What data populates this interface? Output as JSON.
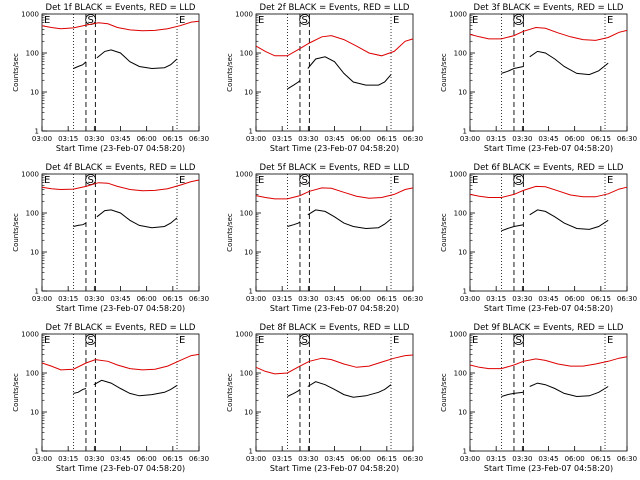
{
  "chart_data": {
    "type": "line",
    "y_scale": "log",
    "ylim": [
      1,
      1000
    ],
    "y_ticks": [
      "1",
      "10",
      "100",
      "1000"
    ],
    "ylabel": "Counts/sec",
    "xlabel": "Start Time (23-Feb-07 04:58:20)",
    "x_ticks": [
      "03:00",
      "03:15",
      "03:30",
      "03:45",
      "06:00",
      "06:15",
      "06:30"
    ],
    "markers": {
      "start": "S",
      "eclipse": "E"
    },
    "colors": {
      "events": "#000000",
      "lld": "#dd0000"
    },
    "panels": [
      {
        "title": "Det 1f BLACK = Events, RED = LLD",
        "lld": [
          [
            0,
            500
          ],
          [
            0.06,
            450
          ],
          [
            0.12,
            420
          ],
          [
            0.2,
            440
          ],
          [
            0.28,
            520
          ],
          [
            0.36,
            600
          ],
          [
            0.42,
            560
          ],
          [
            0.48,
            450
          ],
          [
            0.56,
            390
          ],
          [
            0.64,
            370
          ],
          [
            0.72,
            380
          ],
          [
            0.8,
            420
          ],
          [
            0.88,
            500
          ],
          [
            0.95,
            620
          ],
          [
            1,
            650
          ]
        ],
        "events_a": [
          [
            0.2,
            40
          ],
          [
            0.23,
            45
          ],
          [
            0.26,
            50
          ],
          [
            0.28,
            60
          ]
        ],
        "events_b": [
          [
            0.35,
            75
          ],
          [
            0.4,
            110
          ],
          [
            0.44,
            120
          ],
          [
            0.5,
            100
          ],
          [
            0.56,
            60
          ],
          [
            0.62,
            45
          ],
          [
            0.7,
            40
          ],
          [
            0.78,
            42
          ],
          [
            0.82,
            50
          ],
          [
            0.86,
            70
          ]
        ]
      },
      {
        "title": "Det 2f BLACK = Events, RED = LLD",
        "lld": [
          [
            0,
            150
          ],
          [
            0.06,
            110
          ],
          [
            0.12,
            85
          ],
          [
            0.2,
            85
          ],
          [
            0.28,
            130
          ],
          [
            0.34,
            180
          ],
          [
            0.42,
            260
          ],
          [
            0.48,
            280
          ],
          [
            0.56,
            220
          ],
          [
            0.64,
            150
          ],
          [
            0.72,
            100
          ],
          [
            0.8,
            85
          ],
          [
            0.88,
            110
          ],
          [
            0.95,
            200
          ],
          [
            1,
            230
          ]
        ],
        "events_a": [
          [
            0.2,
            12
          ],
          [
            0.24,
            15
          ],
          [
            0.27,
            18
          ],
          [
            0.28,
            20
          ]
        ],
        "events_b": [
          [
            0.33,
            40
          ],
          [
            0.38,
            70
          ],
          [
            0.44,
            80
          ],
          [
            0.5,
            60
          ],
          [
            0.56,
            30
          ],
          [
            0.62,
            18
          ],
          [
            0.7,
            15
          ],
          [
            0.78,
            15
          ],
          [
            0.82,
            18
          ],
          [
            0.86,
            28
          ]
        ]
      },
      {
        "title": "Det 3f BLACK = Events, RED = LLD",
        "lld": [
          [
            0,
            300
          ],
          [
            0.06,
            260
          ],
          [
            0.12,
            230
          ],
          [
            0.2,
            230
          ],
          [
            0.28,
            280
          ],
          [
            0.34,
            360
          ],
          [
            0.42,
            450
          ],
          [
            0.48,
            430
          ],
          [
            0.56,
            330
          ],
          [
            0.64,
            260
          ],
          [
            0.72,
            220
          ],
          [
            0.8,
            210
          ],
          [
            0.88,
            250
          ],
          [
            0.95,
            340
          ],
          [
            1,
            380
          ]
        ],
        "events_a": [
          [
            0.2,
            30
          ],
          [
            0.24,
            34
          ],
          [
            0.28,
            40
          ],
          [
            0.34,
            45
          ]
        ],
        "events_b": [
          [
            0.38,
            80
          ],
          [
            0.43,
            110
          ],
          [
            0.48,
            100
          ],
          [
            0.54,
            70
          ],
          [
            0.6,
            45
          ],
          [
            0.68,
            30
          ],
          [
            0.76,
            28
          ],
          [
            0.82,
            35
          ],
          [
            0.88,
            55
          ]
        ]
      },
      {
        "title": "Det 4f BLACK = Events, RED = LLD",
        "lld": [
          [
            0,
            460
          ],
          [
            0.06,
            420
          ],
          [
            0.12,
            400
          ],
          [
            0.2,
            410
          ],
          [
            0.28,
            480
          ],
          [
            0.36,
            600
          ],
          [
            0.42,
            580
          ],
          [
            0.48,
            480
          ],
          [
            0.56,
            400
          ],
          [
            0.64,
            370
          ],
          [
            0.72,
            380
          ],
          [
            0.8,
            420
          ],
          [
            0.88,
            520
          ],
          [
            0.95,
            640
          ],
          [
            1,
            700
          ]
        ],
        "events_a": [
          [
            0.2,
            45
          ],
          [
            0.23,
            48
          ],
          [
            0.26,
            50
          ],
          [
            0.28,
            55
          ]
        ],
        "events_b": [
          [
            0.35,
            80
          ],
          [
            0.4,
            115
          ],
          [
            0.44,
            120
          ],
          [
            0.5,
            100
          ],
          [
            0.56,
            65
          ],
          [
            0.62,
            48
          ],
          [
            0.7,
            42
          ],
          [
            0.78,
            45
          ],
          [
            0.82,
            55
          ],
          [
            0.86,
            75
          ]
        ]
      },
      {
        "title": "Det 5f BLACK = Events, RED = LLD",
        "lld": [
          [
            0,
            280
          ],
          [
            0.06,
            250
          ],
          [
            0.12,
            230
          ],
          [
            0.2,
            230
          ],
          [
            0.28,
            280
          ],
          [
            0.34,
            360
          ],
          [
            0.42,
            440
          ],
          [
            0.48,
            430
          ],
          [
            0.56,
            340
          ],
          [
            0.64,
            270
          ],
          [
            0.72,
            240
          ],
          [
            0.8,
            250
          ],
          [
            0.88,
            300
          ],
          [
            0.95,
            400
          ],
          [
            1,
            440
          ]
        ],
        "events_a": [
          [
            0.2,
            45
          ],
          [
            0.24,
            50
          ],
          [
            0.27,
            55
          ],
          [
            0.28,
            60
          ]
        ],
        "events_b": [
          [
            0.33,
            90
          ],
          [
            0.38,
            120
          ],
          [
            0.44,
            110
          ],
          [
            0.5,
            80
          ],
          [
            0.56,
            55
          ],
          [
            0.62,
            45
          ],
          [
            0.7,
            40
          ],
          [
            0.78,
            42
          ],
          [
            0.82,
            52
          ],
          [
            0.86,
            70
          ]
        ]
      },
      {
        "title": "Det 6f BLACK = Events, RED = LLD",
        "lld": [
          [
            0,
            300
          ],
          [
            0.06,
            270
          ],
          [
            0.12,
            250
          ],
          [
            0.2,
            250
          ],
          [
            0.28,
            300
          ],
          [
            0.34,
            380
          ],
          [
            0.42,
            480
          ],
          [
            0.48,
            470
          ],
          [
            0.56,
            370
          ],
          [
            0.64,
            290
          ],
          [
            0.72,
            260
          ],
          [
            0.8,
            260
          ],
          [
            0.88,
            310
          ],
          [
            0.95,
            410
          ],
          [
            1,
            460
          ]
        ],
        "events_a": [
          [
            0.2,
            35
          ],
          [
            0.24,
            40
          ],
          [
            0.28,
            45
          ],
          [
            0.34,
            50
          ]
        ],
        "events_b": [
          [
            0.38,
            90
          ],
          [
            0.43,
            120
          ],
          [
            0.48,
            110
          ],
          [
            0.54,
            80
          ],
          [
            0.6,
            55
          ],
          [
            0.68,
            40
          ],
          [
            0.76,
            38
          ],
          [
            0.82,
            45
          ],
          [
            0.88,
            65
          ]
        ]
      },
      {
        "title": "Det 7f BLACK = Events, RED = LLD",
        "lld": [
          [
            0,
            180
          ],
          [
            0.06,
            150
          ],
          [
            0.12,
            120
          ],
          [
            0.2,
            125
          ],
          [
            0.28,
            180
          ],
          [
            0.34,
            220
          ],
          [
            0.42,
            200
          ],
          [
            0.48,
            160
          ],
          [
            0.56,
            130
          ],
          [
            0.64,
            120
          ],
          [
            0.72,
            125
          ],
          [
            0.8,
            150
          ],
          [
            0.88,
            210
          ],
          [
            0.95,
            280
          ],
          [
            1,
            300
          ]
        ],
        "events_a": [
          [
            0.2,
            30
          ],
          [
            0.23,
            32
          ],
          [
            0.26,
            38
          ],
          [
            0.28,
            40
          ]
        ],
        "events_b": [
          [
            0.33,
            50
          ],
          [
            0.38,
            65
          ],
          [
            0.44,
            55
          ],
          [
            0.5,
            40
          ],
          [
            0.56,
            30
          ],
          [
            0.62,
            26
          ],
          [
            0.7,
            28
          ],
          [
            0.78,
            32
          ],
          [
            0.82,
            38
          ],
          [
            0.86,
            48
          ]
        ]
      },
      {
        "title": "Det 8f BLACK = Events, RED = LLD",
        "lld": [
          [
            0,
            140
          ],
          [
            0.06,
            110
          ],
          [
            0.12,
            95
          ],
          [
            0.2,
            100
          ],
          [
            0.28,
            150
          ],
          [
            0.34,
            200
          ],
          [
            0.42,
            240
          ],
          [
            0.48,
            220
          ],
          [
            0.56,
            170
          ],
          [
            0.64,
            140
          ],
          [
            0.72,
            150
          ],
          [
            0.8,
            190
          ],
          [
            0.88,
            240
          ],
          [
            0.95,
            280
          ],
          [
            1,
            290
          ]
        ],
        "events_a": [
          [
            0.2,
            25
          ],
          [
            0.24,
            30
          ],
          [
            0.27,
            35
          ],
          [
            0.28,
            38
          ]
        ],
        "events_b": [
          [
            0.33,
            45
          ],
          [
            0.38,
            60
          ],
          [
            0.44,
            50
          ],
          [
            0.5,
            38
          ],
          [
            0.56,
            28
          ],
          [
            0.62,
            24
          ],
          [
            0.7,
            26
          ],
          [
            0.78,
            32
          ],
          [
            0.82,
            38
          ],
          [
            0.86,
            50
          ]
        ]
      },
      {
        "title": "Det 9f BLACK = Events, RED = LLD",
        "lld": [
          [
            0,
            160
          ],
          [
            0.06,
            140
          ],
          [
            0.12,
            130
          ],
          [
            0.2,
            130
          ],
          [
            0.28,
            160
          ],
          [
            0.34,
            200
          ],
          [
            0.42,
            230
          ],
          [
            0.48,
            210
          ],
          [
            0.56,
            170
          ],
          [
            0.64,
            150
          ],
          [
            0.72,
            150
          ],
          [
            0.8,
            170
          ],
          [
            0.88,
            200
          ],
          [
            0.95,
            240
          ],
          [
            1,
            260
          ]
        ],
        "events_a": [
          [
            0.2,
            25
          ],
          [
            0.24,
            28
          ],
          [
            0.28,
            30
          ],
          [
            0.34,
            32
          ]
        ],
        "events_b": [
          [
            0.38,
            45
          ],
          [
            0.43,
            55
          ],
          [
            0.48,
            50
          ],
          [
            0.54,
            40
          ],
          [
            0.6,
            30
          ],
          [
            0.68,
            25
          ],
          [
            0.76,
            26
          ],
          [
            0.82,
            32
          ],
          [
            0.88,
            45
          ]
        ]
      }
    ]
  }
}
